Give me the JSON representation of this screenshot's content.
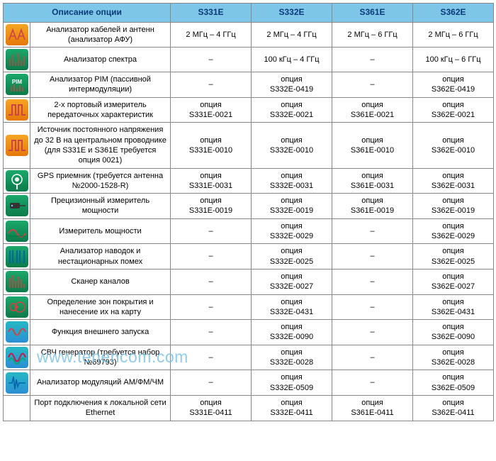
{
  "watermark": "www.tehencom.com",
  "colors": {
    "header_bg": "#7ec6e8",
    "header_text": "#0a3a7a",
    "border": "#888888",
    "icon_orange": "#f5a623",
    "icon_orange_dark": "#e6780b",
    "icon_green": "#1aa86b",
    "icon_green_dark": "#0c7a4a",
    "icon_teal": "#27b8c4",
    "icon_blue": "#2a8fd4",
    "watermark_color": "#7dc3e6"
  },
  "header": {
    "desc": "Описание опции",
    "models": [
      "S331E",
      "S332E",
      "S361E",
      "S362E"
    ]
  },
  "rows": [
    {
      "icon": "antenna",
      "desc": "Анализатор кабелей и антенн (анализатор АФУ)",
      "cells": [
        "2 МГц – 4 ГГц",
        "2 МГц – 4 ГГц",
        "2 МГц – 6 ГГц",
        "2 МГц – 6 ГГц"
      ]
    },
    {
      "icon": "spectrum",
      "desc": "Анализатор спектра",
      "cells": [
        "–",
        "100 кГц – 4 ГГц",
        "–",
        "100 кГц – 6 ГГц"
      ]
    },
    {
      "icon": "pim",
      "desc": "Анализатор PIM (пассивной интермодуляции)",
      "cells": [
        "–",
        "опция\nS332E-0419",
        "–",
        "опция\nS362E-0419"
      ]
    },
    {
      "icon": "pulse",
      "desc": "2-х портовый измеритель передаточных характеристик",
      "cells": [
        "опция\nS331E-0021",
        "опция\nS332E-0021",
        "опция\nS361E-0021",
        "опция\nS362E-0021"
      ]
    },
    {
      "icon": "pulse2",
      "desc": "Источник постоянного напряжения до 32 В на центральном проводнике (для S331E и S361E требуется опция 0021)",
      "cells": [
        "опция\nS331E-0010",
        "опция\nS332E-0010",
        "опция\nS361E-0010",
        "опция\nS362E-0010"
      ]
    },
    {
      "icon": "gps",
      "desc": "GPS приемник (требуется антенна №2000-1528-R)",
      "cells": [
        "опция\nS331E-0031",
        "опция\nS332E-0031",
        "опция\nS361E-0031",
        "опция\nS362E-0031"
      ]
    },
    {
      "icon": "probe",
      "desc": "Прецизионный измеритель мощности",
      "cells": [
        "опция\nS331E-0019",
        "опция\nS332E-0019",
        "опция\nS361E-0019",
        "опция\nS362E-0019"
      ]
    },
    {
      "icon": "power",
      "desc": "Измеритель мощности",
      "cells": [
        "–",
        "опция\nS332E-0029",
        "–",
        "опция\nS362E-0029"
      ]
    },
    {
      "icon": "noise",
      "desc": "Анализатор наводок и нестационарных помех",
      "cells": [
        "–",
        "опция\nS332E-0025",
        "–",
        "опция\nS362E-0025"
      ]
    },
    {
      "icon": "scanner",
      "desc": "Сканер каналов",
      "cells": [
        "–",
        "опция\nS332E-0027",
        "–",
        "опция\nS362E-0027"
      ]
    },
    {
      "icon": "map",
      "desc": "Определение зон покрытия и нанесение их на карту",
      "cells": [
        "–",
        "опция\nS332E-0431",
        "–",
        "опция\nS362E-0431"
      ]
    },
    {
      "icon": "trigger",
      "desc": "Функция внешнего запуска",
      "cells": [
        "–",
        "опция\nS332E-0090",
        "–",
        "опция\nS362E-0090"
      ]
    },
    {
      "icon": "generator",
      "desc": "СВЧ генератор (требуется набор №69793)",
      "cells": [
        "–",
        "опция\nS332E-0028",
        "–",
        "опция\nS362E-0028"
      ]
    },
    {
      "icon": "modulation",
      "desc": "Анализатор модуляций АМ/ФМ/ЧМ",
      "cells": [
        "–",
        "опция\nS332E-0509",
        "–",
        "опция\nS362E-0509"
      ]
    },
    {
      "icon": "none",
      "desc": "Порт подключения к локальной сети Ethernet",
      "cells": [
        "опция\nS331E-0411",
        "опция\nS332E-0411",
        "опция\nS361E-0411",
        "опция\nS362E-0411"
      ]
    }
  ]
}
